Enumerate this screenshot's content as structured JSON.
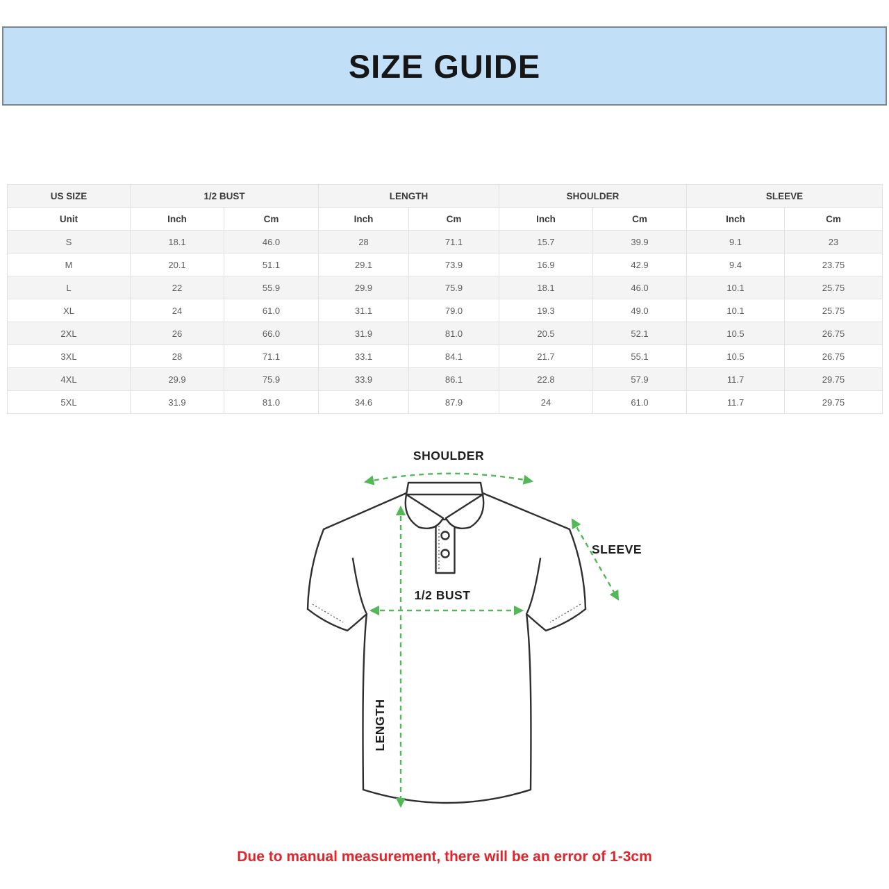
{
  "banner": {
    "title": "SIZE GUIDE",
    "bg_color": "#c1e0f7"
  },
  "table": {
    "groups": [
      "US SIZE",
      "1/2 BUST",
      "LENGTH",
      "SHOULDER",
      "SLEEVE"
    ],
    "unit_row": [
      "Unit",
      "Inch",
      "Cm",
      "Inch",
      "Cm",
      "Inch",
      "Cm",
      "Inch",
      "Cm"
    ],
    "rows": [
      [
        "S",
        "18.1",
        "46.0",
        "28",
        "71.1",
        "15.7",
        "39.9",
        "9.1",
        "23"
      ],
      [
        "M",
        "20.1",
        "51.1",
        "29.1",
        "73.9",
        "16.9",
        "42.9",
        "9.4",
        "23.75"
      ],
      [
        "L",
        "22",
        "55.9",
        "29.9",
        "75.9",
        "18.1",
        "46.0",
        "10.1",
        "25.75"
      ],
      [
        "XL",
        "24",
        "61.0",
        "31.1",
        "79.0",
        "19.3",
        "49.0",
        "10.1",
        "25.75"
      ],
      [
        "2XL",
        "26",
        "66.0",
        "31.9",
        "81.0",
        "20.5",
        "52.1",
        "10.5",
        "26.75"
      ],
      [
        "3XL",
        "28",
        "71.1",
        "33.1",
        "84.1",
        "21.7",
        "55.1",
        "10.5",
        "26.75"
      ],
      [
        "4XL",
        "29.9",
        "75.9",
        "33.9",
        "86.1",
        "22.8",
        "57.9",
        "11.7",
        "29.75"
      ],
      [
        "5XL",
        "31.9",
        "81.0",
        "34.6",
        "87.9",
        "24",
        "61.0",
        "11.7",
        "29.75"
      ]
    ]
  },
  "diagram": {
    "labels": {
      "shoulder": "SHOULDER",
      "sleeve": "SLEEVE",
      "bust": "1/2 BUST",
      "length": "LENGTH"
    },
    "arrow_color": "#53b857",
    "outline_color": "#2f2f2f"
  },
  "note": {
    "text": "Due to manual measurement, there will be an error of 1-3cm",
    "color": "#e3242b"
  }
}
